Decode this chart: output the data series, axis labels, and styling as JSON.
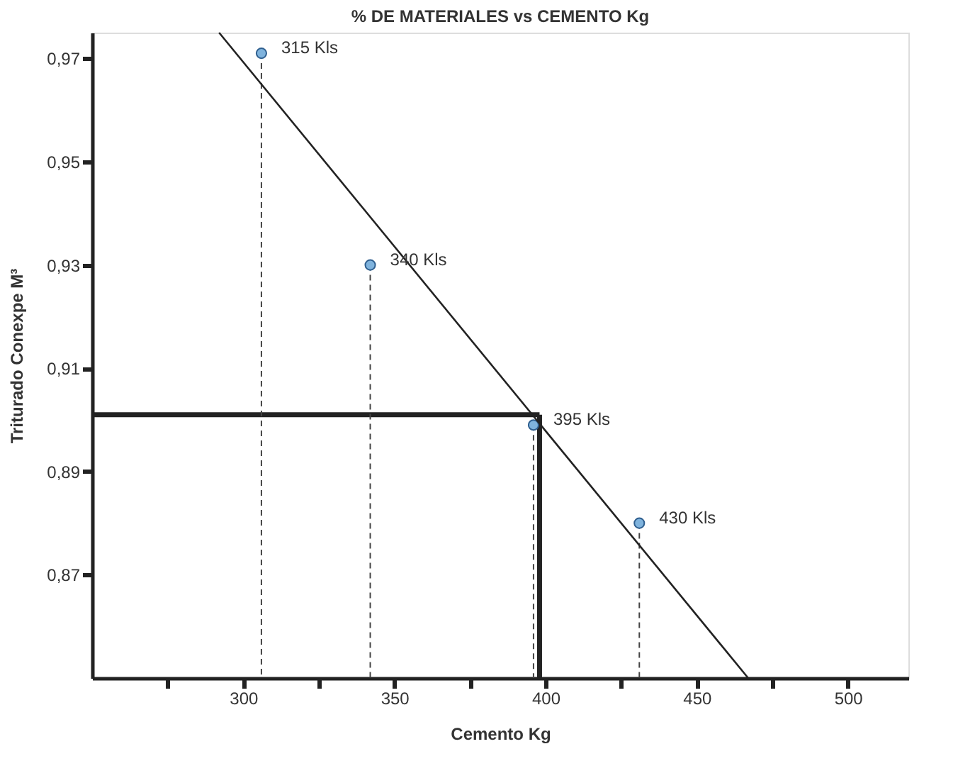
{
  "chart_data": {
    "type": "lollipop",
    "title": "% DE MATERIALES vs CEMENTO Kg",
    "xlabel": "Cemento Kg",
    "ylabel": "Triturado Conexpe M³",
    "x": [
      306,
      342,
      396,
      431
    ],
    "series": [
      {
        "color": "#7fb3dd",
        "values": [
          0.971,
          0.93,
          0.899,
          0.88
        ],
        "marker": "circle",
        "line_style": "dashed"
      },
      {
        "type": "line",
        "color": "#222222",
        "x": [
          292,
          467
        ],
        "values": [
          0.975,
          0.85
        ],
        "line_style": "solid",
        "marker": "none"
      }
    ],
    "annotations": [
      {
        "text": "315 Kls",
        "x": 306,
        "y": 0.971
      },
      {
        "text": "340 Kls",
        "x": 342,
        "y": 0.93
      },
      {
        "text": "395 Kls",
        "x": 396,
        "y": 0.899
      },
      {
        "text": "430 Kls",
        "x": 431,
        "y": 0.88
      }
    ],
    "ref_lines": [
      {
        "axis": "y",
        "value": 0.901,
        "color": "#222222",
        "line_style": "solid"
      },
      {
        "axis": "x",
        "value": 398,
        "color": "#222222",
        "line_style": "solid"
      }
    ],
    "xlim": [
      250,
      520
    ],
    "ylim": [
      0.85,
      0.975
    ],
    "xticks": [
      {
        "value": 275,
        "label": null
      },
      300,
      {
        "value": 325,
        "label": null
      },
      350,
      {
        "value": 375,
        "label": null
      },
      400,
      {
        "value": 425,
        "label": null
      },
      450,
      {
        "value": 475,
        "label": null
      },
      500
    ],
    "yticks": [
      {
        "value": 0.87,
        "label": "0,87"
      },
      {
        "value": 0.89,
        "label": "0,89"
      },
      {
        "value": 0.91,
        "label": "0,91"
      },
      {
        "value": 0.93,
        "label": "0,93"
      },
      {
        "value": 0.95,
        "label": "0,95"
      },
      {
        "value": 0.97,
        "label": "0,97"
      }
    ],
    "grid": false
  }
}
